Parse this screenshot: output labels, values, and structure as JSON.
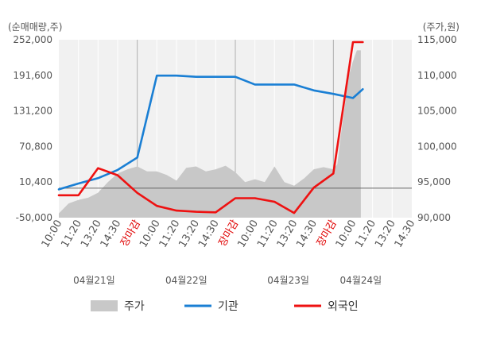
{
  "chart_data": {
    "type": "line",
    "left_axis_unit": "(순매매량,주)",
    "right_axis_unit": "(주가,원)",
    "left_ticks": [
      "252,000",
      "191,600",
      "131,200",
      "70,800",
      "10,400",
      "-50,000"
    ],
    "right_ticks": [
      "115,000",
      "110,000",
      "105,000",
      "100,000",
      "95,000",
      "90,000"
    ],
    "left_ylim": [
      -50000,
      252000
    ],
    "right_ylim": [
      90000,
      115000
    ],
    "zero_line": 0,
    "x_ticks": [
      "10:00",
      "11:20",
      "13:20",
      "14:30",
      "장마감",
      "10:00",
      "11:20",
      "13:20",
      "14:30",
      "장마감",
      "10:00",
      "11:20",
      "13:20",
      "14:30",
      "장마감",
      "10:00",
      "11:20",
      "13:20",
      "14:30"
    ],
    "session_closes": [
      4,
      9,
      14
    ],
    "dates": [
      {
        "label": "04월21일",
        "tick": 1.8
      },
      {
        "label": "04월22일",
        "tick": 6.5
      },
      {
        "label": "04월23일",
        "tick": 11.7
      },
      {
        "label": "04월24일",
        "tick": 15.4
      }
    ],
    "series": [
      {
        "name": "기관",
        "color": "#1a7fd4",
        "x": [
          0,
          1,
          2,
          3,
          4,
          5,
          6,
          7,
          8,
          9,
          10,
          11,
          12,
          13,
          14,
          15,
          15.5
        ],
        "values": [
          -2000,
          8000,
          17000,
          31000,
          52000,
          191000,
          191000,
          189000,
          189000,
          189000,
          176000,
          176000,
          176000,
          166000,
          160000,
          153000,
          168000
        ]
      },
      {
        "name": "외국인",
        "color": "#ee1111",
        "x": [
          0,
          1,
          2,
          3,
          4,
          5,
          6,
          7,
          8,
          9,
          10,
          11,
          12,
          13,
          14,
          15,
          15.5
        ],
        "values": [
          -12000,
          -12000,
          34000,
          22000,
          -8000,
          -30000,
          -38000,
          -40000,
          -41000,
          -17000,
          -17000,
          -23000,
          -42000,
          1000,
          25000,
          248000,
          248000
        ]
      },
      {
        "name": "주가",
        "color": "#c8c8c8",
        "type": "area",
        "x": [
          0,
          0.5,
          1,
          1.5,
          2,
          2.5,
          3,
          3.5,
          4,
          4.5,
          5,
          5.5,
          6,
          6.5,
          7,
          7.5,
          8,
          8.5,
          9,
          9.5,
          10,
          10.5,
          11,
          11.5,
          12,
          12.5,
          13,
          13.5,
          14,
          14.2,
          14.4,
          14.6,
          14.8,
          15,
          15.2,
          15.4
        ],
        "values": [
          90600,
          92000,
          92500,
          92800,
          93500,
          95000,
          96200,
          96800,
          97200,
          96500,
          96500,
          96000,
          95200,
          97000,
          97200,
          96500,
          96800,
          97300,
          96400,
          95000,
          95400,
          95000,
          97200,
          95000,
          94500,
          95500,
          96800,
          97100,
          96800,
          97500,
          102000,
          106000,
          110000,
          112000,
          113500,
          113500
        ]
      }
    ]
  },
  "legend": [
    {
      "label": "주가",
      "kind": "area",
      "color": "#c8c8c8"
    },
    {
      "label": "기관",
      "kind": "line",
      "color": "#1a7fd4"
    },
    {
      "label": "외국인",
      "kind": "line",
      "color": "#ee1111"
    }
  ]
}
